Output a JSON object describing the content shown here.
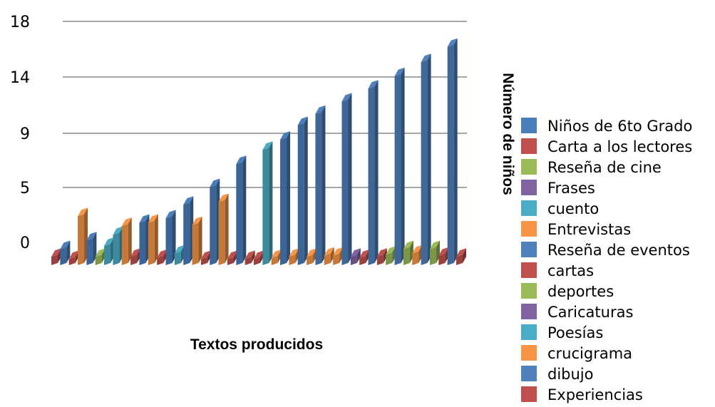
{
  "chart_data": {
    "type": "bar",
    "xlabel": "Textos producidos",
    "ylabel": "Número de niños",
    "y_ticks": [
      "0",
      "5",
      "9",
      "14",
      "18"
    ],
    "ylim": [
      0,
      18
    ],
    "grid": true,
    "legend_position": "right",
    "series": [
      {
        "name": "Niños de 6to Grado",
        "color": "#4a7ebb"
      },
      {
        "name": "Carta a los lectores",
        "color": "#c0504d"
      },
      {
        "name": "Reseña de cine",
        "color": "#9bbb59"
      },
      {
        "name": "Frases",
        "color": "#8064a2"
      },
      {
        "name": "cuento",
        "color": "#4bacc6"
      },
      {
        "name": "Entrevistas",
        "color": "#f79646"
      },
      {
        "name": "Reseña de eventos",
        "color": "#4f81bd"
      },
      {
        "name": "cartas",
        "color": "#c0504d"
      },
      {
        "name": "deportes",
        "color": "#9bbb59"
      },
      {
        "name": "Caricaturas",
        "color": "#8064a2"
      },
      {
        "name": "Poesías",
        "color": "#4bacc6"
      },
      {
        "name": "crucigrama",
        "color": "#f79646"
      },
      {
        "name": "dibujo",
        "color": "#4f81bd"
      },
      {
        "name": "Experiencias",
        "color": "#c0504d"
      }
    ],
    "bars": [
      {
        "s": 1,
        "v": 0.5
      },
      {
        "s": 0,
        "v": 1.2
      },
      {
        "s": 1,
        "v": 0.3
      },
      {
        "s": 5,
        "v": 4.2
      },
      {
        "s": 0,
        "v": 2.0
      },
      {
        "s": 2,
        "v": 0.5
      },
      {
        "s": 4,
        "v": 1.5
      },
      {
        "s": 4,
        "v": 2.5
      },
      {
        "s": 5,
        "v": 3.3
      },
      {
        "s": 1,
        "v": 0.5
      },
      {
        "s": 0,
        "v": 3.6
      },
      {
        "s": 5,
        "v": 3.6
      },
      {
        "s": 1,
        "v": 0.4
      },
      {
        "s": 0,
        "v": 4.0
      },
      {
        "s": 4,
        "v": 0.8
      },
      {
        "s": 0,
        "v": 5.2
      },
      {
        "s": 5,
        "v": 3.4
      },
      {
        "s": 1,
        "v": 0.3
      },
      {
        "s": 0,
        "v": 6.5
      },
      {
        "s": 5,
        "v": 5.4
      },
      {
        "s": 1,
        "v": 0.3
      },
      {
        "s": 0,
        "v": 8.2
      },
      {
        "s": 1,
        "v": 0.3
      },
      {
        "s": 1,
        "v": 0.3
      },
      {
        "s": 4,
        "v": 9.3
      },
      {
        "s": 5,
        "v": 0.4
      },
      {
        "s": 0,
        "v": 10.2
      },
      {
        "s": 5,
        "v": 0.5
      },
      {
        "s": 0,
        "v": 11.5
      },
      {
        "s": 5,
        "v": 0.5
      },
      {
        "s": 12,
        "v": 12.5
      },
      {
        "s": 5,
        "v": 0.6
      },
      {
        "s": 5,
        "v": 0.6
      },
      {
        "s": 12,
        "v": 13.6
      },
      {
        "s": 3,
        "v": 0.5
      },
      {
        "s": 1,
        "v": 0.4
      },
      {
        "s": 12,
        "v": 14.6
      },
      {
        "s": 1,
        "v": 0.5
      },
      {
        "s": 2,
        "v": 0.7
      },
      {
        "s": 12,
        "v": 15.5
      },
      {
        "s": 2,
        "v": 1.2
      },
      {
        "s": 5,
        "v": 0.8
      },
      {
        "s": 12,
        "v": 16.5
      },
      {
        "s": 2,
        "v": 1.2
      },
      {
        "s": 1,
        "v": 0.6
      },
      {
        "s": 12,
        "v": 17.6
      },
      {
        "s": 1,
        "v": 0.5
      }
    ]
  }
}
